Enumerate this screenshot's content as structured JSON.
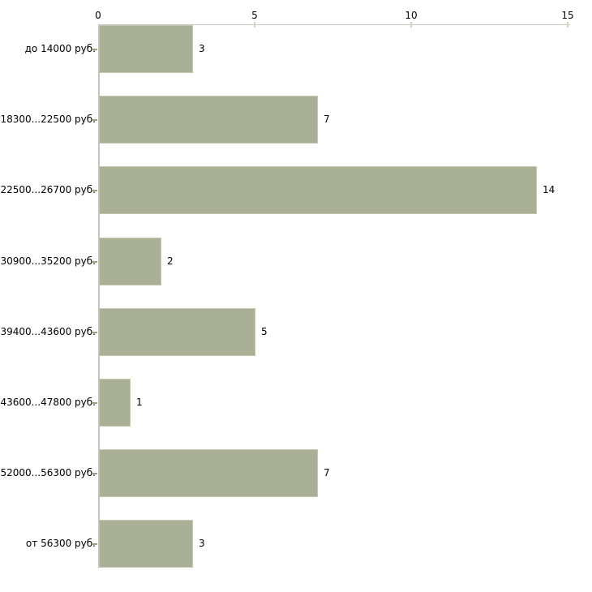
{
  "chart_data": {
    "type": "bar",
    "orientation": "horizontal",
    "title": "",
    "xlabel": "",
    "ylabel": "",
    "categories": [
      "до 14000 руб.",
      "18300...22500 руб.",
      "22500...26700 руб.",
      "30900...35200 руб.",
      "39400...43600 руб.",
      "43600...47800 руб.",
      "52000...56300 руб.",
      "от 56300 руб."
    ],
    "values": [
      3,
      7,
      14,
      2,
      5,
      1,
      7,
      3
    ],
    "value_labels": [
      "3",
      "7",
      "14",
      "2",
      "5",
      "1",
      "7",
      "3"
    ],
    "xlim": [
      0,
      15
    ],
    "x_ticks": [
      0,
      5,
      10,
      15
    ],
    "x_axis_position": "top",
    "grid": false,
    "legend": null,
    "colors": {
      "bar_fill": "#a9b096",
      "bar_border": "#c3c6ad",
      "axis_line": "#c3c3bf",
      "axis_tick_mark": "#d5d7ba",
      "category_tick_mark": "#9aa077",
      "text": "#000000",
      "background": "#ffffff"
    }
  }
}
